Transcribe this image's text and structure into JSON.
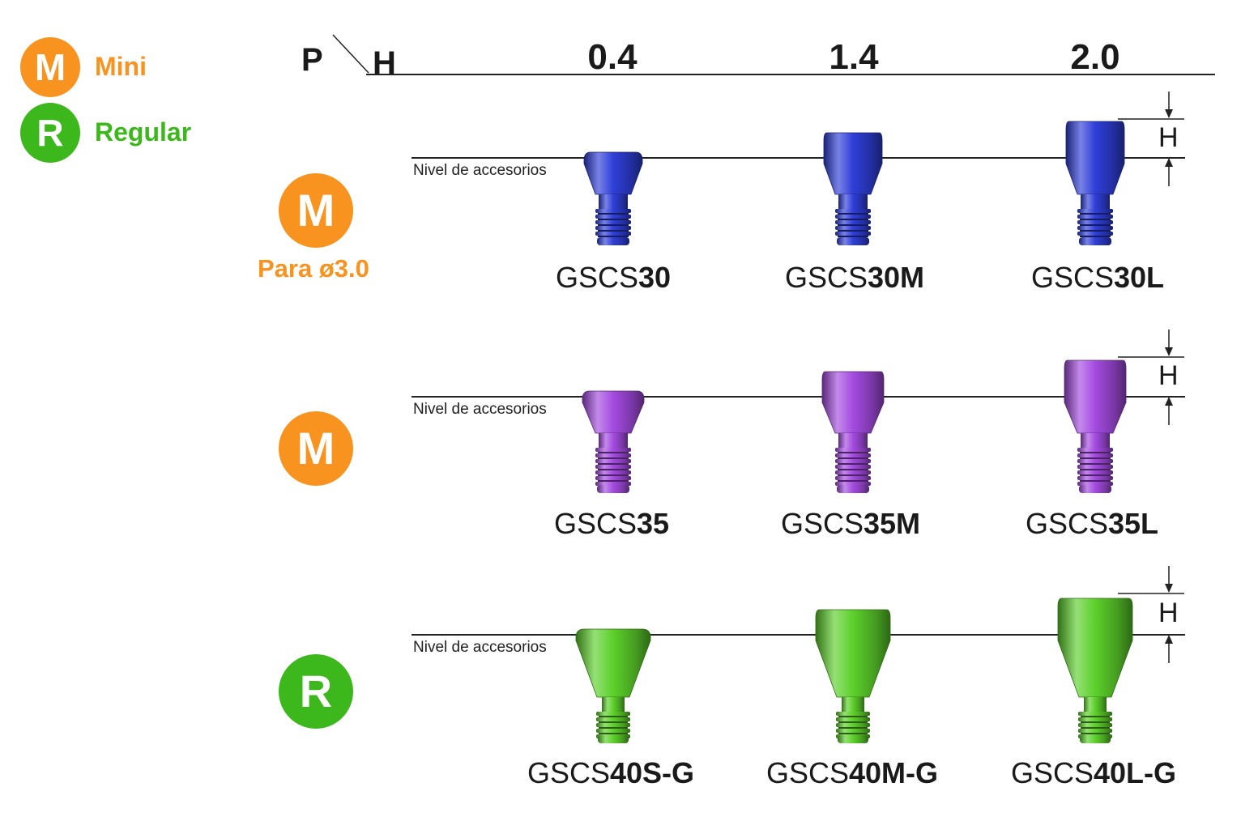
{
  "legend": [
    {
      "letter": "M",
      "label": "Mini",
      "color": "#f7931e"
    },
    {
      "letter": "R",
      "label": "Regular",
      "color": "#3cb81c"
    }
  ],
  "header": {
    "p_label": "P",
    "h_label": "H",
    "columns": [
      "0.4",
      "1.4",
      "2.0"
    ]
  },
  "level_label": "Nivel de accesorios",
  "dimension_label": "H",
  "rows": [
    {
      "badge": "M",
      "badge_color": "#f7931e",
      "subtitle": "Para ø3.0",
      "screw_color": "#2f3fd8",
      "codes": [
        {
          "prefix": "GSCS",
          "suffix": "30"
        },
        {
          "prefix": "GSCS",
          "suffix": "30M"
        },
        {
          "prefix": "GSCS",
          "suffix": "30L"
        }
      ]
    },
    {
      "badge": "M",
      "badge_color": "#f7931e",
      "subtitle": "",
      "screw_color": "#a44be0",
      "codes": [
        {
          "prefix": "GSCS",
          "suffix": "35"
        },
        {
          "prefix": "GSCS",
          "suffix": "35M"
        },
        {
          "prefix": "GSCS",
          "suffix": "35L"
        }
      ]
    },
    {
      "badge": "R",
      "badge_color": "#3cb81c",
      "subtitle": "",
      "screw_color": "#5cd02a",
      "codes": [
        {
          "prefix": "GSCS",
          "suffix": "40S-G"
        },
        {
          "prefix": "GSCS",
          "suffix": "40M-G"
        },
        {
          "prefix": "GSCS",
          "suffix": "40L-G"
        }
      ]
    }
  ]
}
